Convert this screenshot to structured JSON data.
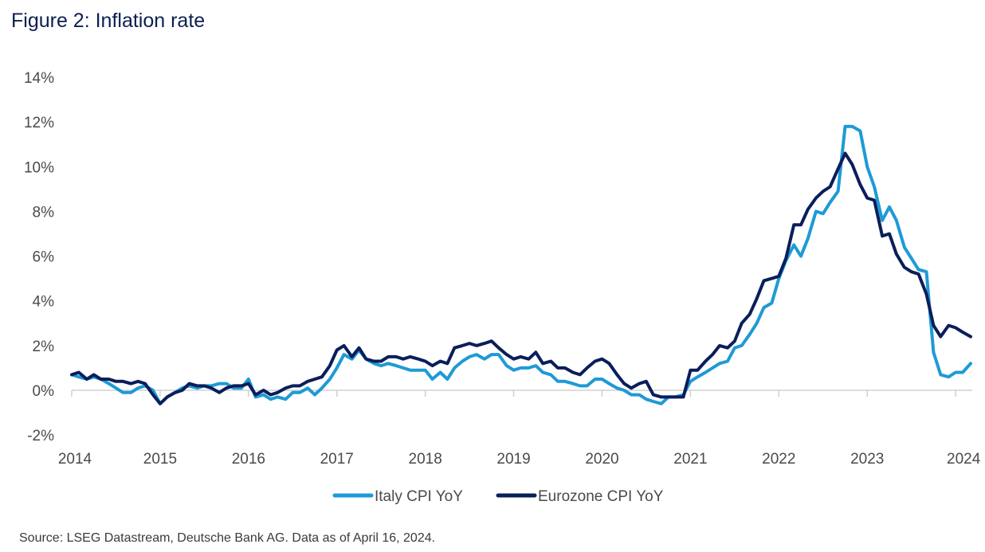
{
  "title": "Figure 2: Inflation rate",
  "source": "Source: LSEG Datastream, Deutsche Bank AG. Data as of April 16, 2024.",
  "chart_data": {
    "type": "line",
    "title": "Figure 2: Inflation rate",
    "xlabel": "",
    "ylabel": "",
    "ylim": [
      -2,
      14
    ],
    "xlim": [
      2014.0,
      2024.25
    ],
    "y_ticks": [
      "-2%",
      "0%",
      "2%",
      "4%",
      "6%",
      "8%",
      "10%",
      "12%",
      "14%"
    ],
    "y_tick_values": [
      -2,
      0,
      2,
      4,
      6,
      8,
      10,
      12,
      14
    ],
    "x_ticks": [
      "2014",
      "2015",
      "2016",
      "2017",
      "2018",
      "2019",
      "2020",
      "2021",
      "2022",
      "2023",
      "2024"
    ],
    "x_tick_values": [
      2014,
      2015,
      2016,
      2017,
      2018,
      2019,
      2020,
      2021,
      2022,
      2023,
      2024
    ],
    "grid": false,
    "legend_position": "bottom-center",
    "series": [
      {
        "name": "Italy CPI YoY",
        "color": "#1e9ad6",
        "points": [
          [
            2014.0,
            0.7
          ],
          [
            2014.08,
            0.6
          ],
          [
            2014.17,
            0.5
          ],
          [
            2014.25,
            0.6
          ],
          [
            2014.33,
            0.5
          ],
          [
            2014.42,
            0.3
          ],
          [
            2014.5,
            0.1
          ],
          [
            2014.58,
            -0.1
          ],
          [
            2014.67,
            -0.1
          ],
          [
            2014.75,
            0.1
          ],
          [
            2014.83,
            0.2
          ],
          [
            2014.92,
            0.0
          ],
          [
            2015.0,
            -0.6
          ],
          [
            2015.08,
            -0.3
          ],
          [
            2015.17,
            -0.1
          ],
          [
            2015.25,
            0.1
          ],
          [
            2015.33,
            0.2
          ],
          [
            2015.42,
            0.1
          ],
          [
            2015.5,
            0.2
          ],
          [
            2015.58,
            0.2
          ],
          [
            2015.67,
            0.3
          ],
          [
            2015.75,
            0.3
          ],
          [
            2015.83,
            0.1
          ],
          [
            2015.92,
            0.1
          ],
          [
            2016.0,
            0.5
          ],
          [
            2016.08,
            -0.3
          ],
          [
            2016.17,
            -0.2
          ],
          [
            2016.25,
            -0.4
          ],
          [
            2016.33,
            -0.3
          ],
          [
            2016.42,
            -0.4
          ],
          [
            2016.5,
            -0.1
          ],
          [
            2016.58,
            -0.1
          ],
          [
            2016.67,
            0.1
          ],
          [
            2016.75,
            -0.2
          ],
          [
            2016.83,
            0.1
          ],
          [
            2016.92,
            0.5
          ],
          [
            2017.0,
            1.0
          ],
          [
            2017.08,
            1.6
          ],
          [
            2017.17,
            1.4
          ],
          [
            2017.25,
            1.8
          ],
          [
            2017.33,
            1.4
          ],
          [
            2017.42,
            1.2
          ],
          [
            2017.5,
            1.1
          ],
          [
            2017.58,
            1.2
          ],
          [
            2017.67,
            1.1
          ],
          [
            2017.75,
            1.0
          ],
          [
            2017.83,
            0.9
          ],
          [
            2017.92,
            0.9
          ],
          [
            2018.0,
            0.9
          ],
          [
            2018.08,
            0.5
          ],
          [
            2018.17,
            0.8
          ],
          [
            2018.25,
            0.5
          ],
          [
            2018.33,
            1.0
          ],
          [
            2018.42,
            1.3
          ],
          [
            2018.5,
            1.5
          ],
          [
            2018.58,
            1.6
          ],
          [
            2018.67,
            1.4
          ],
          [
            2018.75,
            1.6
          ],
          [
            2018.83,
            1.6
          ],
          [
            2018.92,
            1.1
          ],
          [
            2019.0,
            0.9
          ],
          [
            2019.08,
            1.0
          ],
          [
            2019.17,
            1.0
          ],
          [
            2019.25,
            1.1
          ],
          [
            2019.33,
            0.8
          ],
          [
            2019.42,
            0.7
          ],
          [
            2019.5,
            0.4
          ],
          [
            2019.58,
            0.4
          ],
          [
            2019.67,
            0.3
          ],
          [
            2019.75,
            0.2
          ],
          [
            2019.83,
            0.2
          ],
          [
            2019.92,
            0.5
          ],
          [
            2020.0,
            0.5
          ],
          [
            2020.08,
            0.3
          ],
          [
            2020.17,
            0.1
          ],
          [
            2020.25,
            0.0
          ],
          [
            2020.33,
            -0.2
          ],
          [
            2020.42,
            -0.2
          ],
          [
            2020.5,
            -0.4
          ],
          [
            2020.58,
            -0.5
          ],
          [
            2020.67,
            -0.6
          ],
          [
            2020.75,
            -0.3
          ],
          [
            2020.83,
            -0.3
          ],
          [
            2020.92,
            -0.2
          ],
          [
            2021.0,
            0.4
          ],
          [
            2021.08,
            0.6
          ],
          [
            2021.17,
            0.8
          ],
          [
            2021.25,
            1.0
          ],
          [
            2021.33,
            1.2
          ],
          [
            2021.42,
            1.3
          ],
          [
            2021.5,
            1.9
          ],
          [
            2021.58,
            2.0
          ],
          [
            2021.67,
            2.5
          ],
          [
            2021.75,
            3.0
          ],
          [
            2021.83,
            3.7
          ],
          [
            2021.92,
            3.9
          ],
          [
            2022.0,
            5.0
          ],
          [
            2022.08,
            5.8
          ],
          [
            2022.17,
            6.5
          ],
          [
            2022.25,
            6.0
          ],
          [
            2022.33,
            6.8
          ],
          [
            2022.42,
            8.0
          ],
          [
            2022.5,
            7.9
          ],
          [
            2022.58,
            8.4
          ],
          [
            2022.67,
            8.9
          ],
          [
            2022.75,
            11.8
          ],
          [
            2022.83,
            11.8
          ],
          [
            2022.92,
            11.6
          ],
          [
            2023.0,
            10.0
          ],
          [
            2023.08,
            9.1
          ],
          [
            2023.17,
            7.6
          ],
          [
            2023.25,
            8.2
          ],
          [
            2023.33,
            7.6
          ],
          [
            2023.42,
            6.4
          ],
          [
            2023.5,
            5.9
          ],
          [
            2023.58,
            5.4
          ],
          [
            2023.67,
            5.3
          ],
          [
            2023.75,
            1.7
          ],
          [
            2023.83,
            0.7
          ],
          [
            2023.92,
            0.6
          ],
          [
            2024.0,
            0.8
          ],
          [
            2024.08,
            0.8
          ],
          [
            2024.17,
            1.2
          ]
        ]
      },
      {
        "name": "Eurozone CPI YoY",
        "color": "#0a1e5a",
        "points": [
          [
            2014.0,
            0.7
          ],
          [
            2014.08,
            0.8
          ],
          [
            2014.17,
            0.5
          ],
          [
            2014.25,
            0.7
          ],
          [
            2014.33,
            0.5
          ],
          [
            2014.42,
            0.5
          ],
          [
            2014.5,
            0.4
          ],
          [
            2014.58,
            0.4
          ],
          [
            2014.67,
            0.3
          ],
          [
            2014.75,
            0.4
          ],
          [
            2014.83,
            0.3
          ],
          [
            2014.92,
            -0.2
          ],
          [
            2015.0,
            -0.6
          ],
          [
            2015.08,
            -0.3
          ],
          [
            2015.17,
            -0.1
          ],
          [
            2015.25,
            0.0
          ],
          [
            2015.33,
            0.3
          ],
          [
            2015.42,
            0.2
          ],
          [
            2015.5,
            0.2
          ],
          [
            2015.58,
            0.1
          ],
          [
            2015.67,
            -0.1
          ],
          [
            2015.75,
            0.1
          ],
          [
            2015.83,
            0.2
          ],
          [
            2015.92,
            0.2
          ],
          [
            2016.0,
            0.3
          ],
          [
            2016.08,
            -0.2
          ],
          [
            2016.17,
            0.0
          ],
          [
            2016.25,
            -0.2
          ],
          [
            2016.33,
            -0.1
          ],
          [
            2016.42,
            0.1
          ],
          [
            2016.5,
            0.2
          ],
          [
            2016.58,
            0.2
          ],
          [
            2016.67,
            0.4
          ],
          [
            2016.75,
            0.5
          ],
          [
            2016.83,
            0.6
          ],
          [
            2016.92,
            1.1
          ],
          [
            2017.0,
            1.8
          ],
          [
            2017.08,
            2.0
          ],
          [
            2017.17,
            1.5
          ],
          [
            2017.25,
            1.9
          ],
          [
            2017.33,
            1.4
          ],
          [
            2017.42,
            1.3
          ],
          [
            2017.5,
            1.3
          ],
          [
            2017.58,
            1.5
          ],
          [
            2017.67,
            1.5
          ],
          [
            2017.75,
            1.4
          ],
          [
            2017.83,
            1.5
          ],
          [
            2017.92,
            1.4
          ],
          [
            2018.0,
            1.3
          ],
          [
            2018.08,
            1.1
          ],
          [
            2018.17,
            1.3
          ],
          [
            2018.25,
            1.2
          ],
          [
            2018.33,
            1.9
          ],
          [
            2018.42,
            2.0
          ],
          [
            2018.5,
            2.1
          ],
          [
            2018.58,
            2.0
          ],
          [
            2018.67,
            2.1
          ],
          [
            2018.75,
            2.2
          ],
          [
            2018.83,
            1.9
          ],
          [
            2018.92,
            1.6
          ],
          [
            2019.0,
            1.4
          ],
          [
            2019.08,
            1.5
          ],
          [
            2019.17,
            1.4
          ],
          [
            2019.25,
            1.7
          ],
          [
            2019.33,
            1.2
          ],
          [
            2019.42,
            1.3
          ],
          [
            2019.5,
            1.0
          ],
          [
            2019.58,
            1.0
          ],
          [
            2019.67,
            0.8
          ],
          [
            2019.75,
            0.7
          ],
          [
            2019.83,
            1.0
          ],
          [
            2019.92,
            1.3
          ],
          [
            2020.0,
            1.4
          ],
          [
            2020.08,
            1.2
          ],
          [
            2020.17,
            0.7
          ],
          [
            2020.25,
            0.3
          ],
          [
            2020.33,
            0.1
          ],
          [
            2020.42,
            0.3
          ],
          [
            2020.5,
            0.4
          ],
          [
            2020.58,
            -0.2
          ],
          [
            2020.67,
            -0.3
          ],
          [
            2020.75,
            -0.3
          ],
          [
            2020.83,
            -0.3
          ],
          [
            2020.92,
            -0.3
          ],
          [
            2021.0,
            0.9
          ],
          [
            2021.08,
            0.9
          ],
          [
            2021.17,
            1.3
          ],
          [
            2021.25,
            1.6
          ],
          [
            2021.33,
            2.0
          ],
          [
            2021.42,
            1.9
          ],
          [
            2021.5,
            2.2
          ],
          [
            2021.58,
            3.0
          ],
          [
            2021.67,
            3.4
          ],
          [
            2021.75,
            4.1
          ],
          [
            2021.83,
            4.9
          ],
          [
            2021.92,
            5.0
          ],
          [
            2022.0,
            5.1
          ],
          [
            2022.08,
            5.9
          ],
          [
            2022.17,
            7.4
          ],
          [
            2022.25,
            7.4
          ],
          [
            2022.33,
            8.1
          ],
          [
            2022.42,
            8.6
          ],
          [
            2022.5,
            8.9
          ],
          [
            2022.58,
            9.1
          ],
          [
            2022.67,
            9.9
          ],
          [
            2022.75,
            10.6
          ],
          [
            2022.83,
            10.1
          ],
          [
            2022.92,
            9.2
          ],
          [
            2023.0,
            8.6
          ],
          [
            2023.08,
            8.5
          ],
          [
            2023.17,
            6.9
          ],
          [
            2023.25,
            7.0
          ],
          [
            2023.33,
            6.1
          ],
          [
            2023.42,
            5.5
          ],
          [
            2023.5,
            5.3
          ],
          [
            2023.58,
            5.2
          ],
          [
            2023.67,
            4.3
          ],
          [
            2023.75,
            2.9
          ],
          [
            2023.83,
            2.4
          ],
          [
            2023.92,
            2.9
          ],
          [
            2024.0,
            2.8
          ],
          [
            2024.08,
            2.6
          ],
          [
            2024.17,
            2.4
          ]
        ]
      }
    ]
  }
}
